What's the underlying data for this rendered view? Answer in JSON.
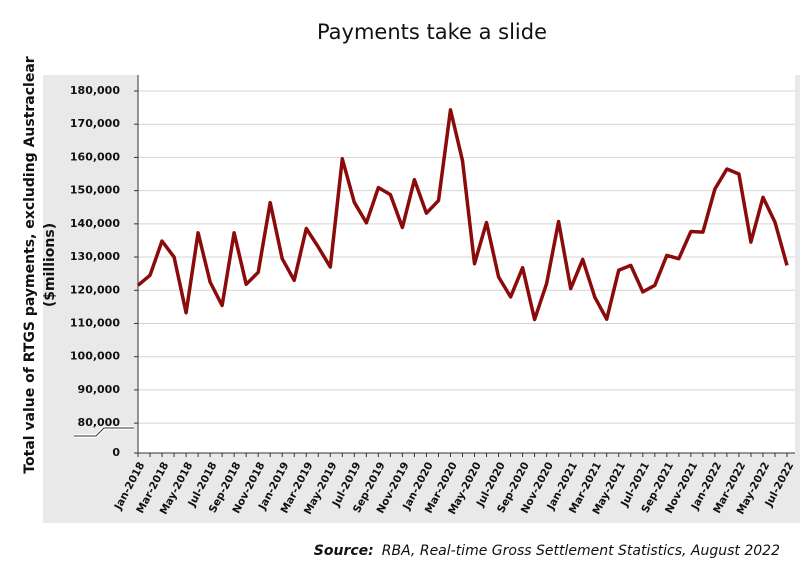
{
  "chart_data": {
    "type": "line",
    "title": "Payments take a slide",
    "ylabel": [
      "Total value of RTGS payments, excluding Austraclear",
      "($millions)"
    ],
    "source": {
      "label": "Source:",
      "text": "RBA, Real-time Gross Settlement Statistics, August 2022"
    },
    "categories": [
      "Jan-2018",
      null,
      "Mar-2018",
      null,
      "May-2018",
      null,
      "Jul-2018",
      null,
      "Sep-2018",
      null,
      "Nov-2018",
      null,
      "Jan-2019",
      null,
      "Mar-2019",
      null,
      "May-2019",
      null,
      "Jul-2019",
      null,
      "Sep-2019",
      null,
      "Nov-2019",
      null,
      "Jan-2020",
      null,
      "Mar-2020",
      null,
      "May-2020",
      null,
      "Jul-2020",
      null,
      "Sep-2020",
      null,
      "Nov-2020",
      null,
      "Jan-2021",
      null,
      "Mar-2021",
      null,
      "May-2021",
      null,
      "Jul-2021",
      null,
      "Sep-2021",
      null,
      "Nov-2021",
      null,
      "Jan-2022",
      null,
      "Mar-2022",
      null,
      "May-2022",
      null,
      "Jul-2022"
    ],
    "series": [
      {
        "color": "#8b0a0a",
        "values": [
          121500,
          124500,
          134800,
          130000,
          113200,
          137300,
          122500,
          115400,
          137300,
          121800,
          125400,
          146400,
          129500,
          123000,
          138600,
          133000,
          127000,
          159600,
          146500,
          140300,
          150900,
          148800,
          138900,
          153300,
          143200,
          147000,
          174300,
          159000,
          128000,
          140400,
          124000,
          118000,
          126800,
          111200,
          122000,
          140700,
          120500,
          129300,
          118000,
          111300,
          126000,
          127500,
          119500,
          121500,
          130500,
          129500,
          137700,
          137500,
          150500,
          156500,
          155000,
          134500,
          148000,
          140500,
          127500
        ]
      }
    ],
    "ylim": [
      71000,
      180000
    ],
    "yticks": [
      0,
      {
        "value": 80000,
        "label": "80,000"
      },
      {
        "value": 90000,
        "label": "90,000"
      },
      {
        "value": 100000,
        "label": "100,000"
      },
      {
        "value": 110000,
        "label": "110,000"
      },
      {
        "value": 120000,
        "label": "120,000"
      },
      {
        "value": 130000,
        "label": "130,000"
      },
      {
        "value": 140000,
        "label": "140,000"
      },
      {
        "value": 150000,
        "label": "150,000"
      },
      {
        "value": 160000,
        "label": "160,000"
      },
      {
        "value": 170000,
        "label": "170,000"
      },
      {
        "value": 180000,
        "label": "180,000"
      }
    ],
    "axis_break": true,
    "grid": true
  }
}
